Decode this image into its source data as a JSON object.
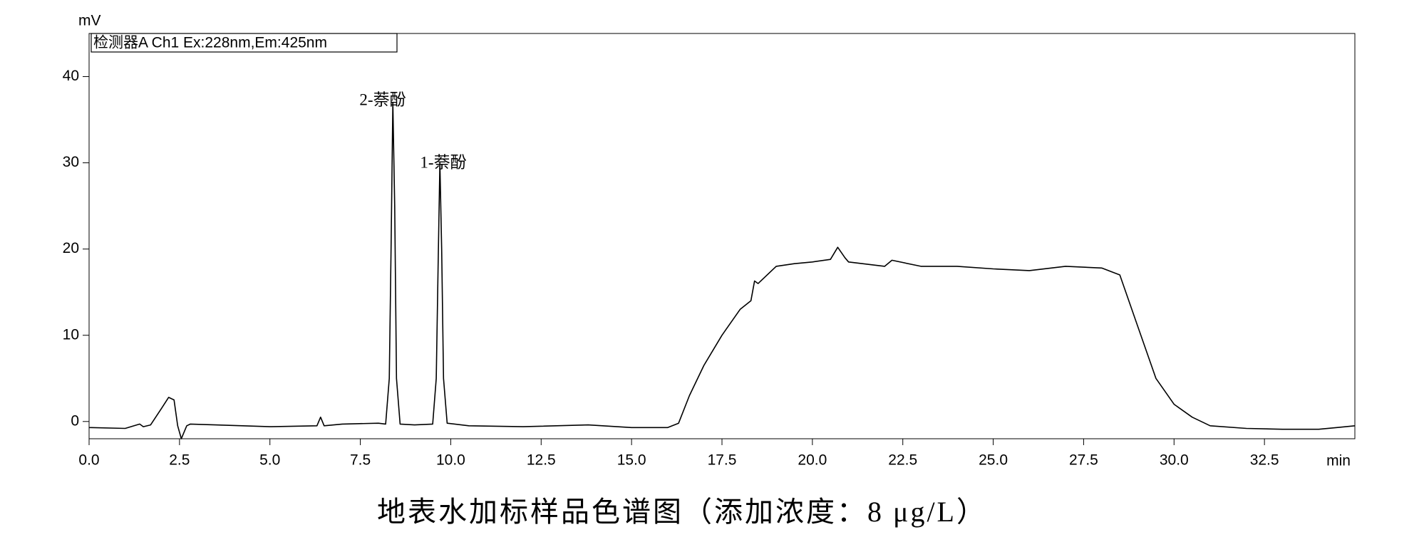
{
  "chart_data": {
    "type": "line",
    "y_label": "mV",
    "x_label": "min",
    "legend_text": "检测器A Ch1 Ex:228nm,Em:425nm",
    "annotations": [
      "2-萘酚",
      "1-萘酚"
    ],
    "caption": "地表水加标样品色谱图（添加浓度：8 μg/L）",
    "xlim": [
      0,
      35
    ],
    "ylim": [
      -2,
      45
    ],
    "xticks": [
      {
        "value": 0,
        "label": "0.0"
      },
      2.5,
      {
        "value": 5,
        "label": "5.0"
      },
      7.5,
      {
        "value": 10,
        "label": "10.0"
      },
      12.5,
      {
        "value": 15,
        "label": "15.0"
      },
      17.5,
      {
        "value": 20,
        "label": "20.0"
      },
      22.5,
      {
        "value": 25,
        "label": "25.0"
      },
      27.5,
      {
        "value": 30,
        "label": "30.0"
      },
      32.5
    ],
    "yticks": [
      0,
      10,
      20,
      30,
      40
    ],
    "series": [
      {
        "color": "#000000",
        "x": [
          0,
          1,
          1.4,
          1.5,
          1.7,
          2.0,
          2.2,
          2.35,
          2.45,
          2.55,
          2.7,
          2.8,
          3.5,
          5,
          6.3,
          6.4,
          6.5,
          7,
          8,
          8.2,
          8.3,
          8.35,
          8.4,
          8.45,
          8.5,
          8.6,
          9.0,
          9.5,
          9.6,
          9.65,
          9.7,
          9.75,
          9.8,
          9.9,
          10.5,
          12,
          13.8,
          15,
          16.0,
          16.3,
          16.6,
          17,
          17.5,
          18,
          18.3,
          18.4,
          18.5,
          19,
          19.5,
          20,
          20.5,
          20.7,
          20.9,
          21,
          22,
          22.2,
          23,
          24,
          25,
          26,
          27,
          28,
          28.5,
          29,
          29.5,
          30,
          30.5,
          31,
          32,
          33,
          34,
          34.5,
          35
        ],
        "values": [
          -0.7,
          -0.8,
          -0.3,
          -0.6,
          -0.4,
          1.5,
          2.8,
          2.5,
          -0.5,
          -2,
          -0.5,
          -0.3,
          -0.4,
          -0.6,
          -0.5,
          0.5,
          -0.5,
          -0.3,
          -0.2,
          -0.3,
          5,
          20,
          37,
          25,
          5,
          -0.3,
          -0.4,
          -0.3,
          5,
          18,
          30,
          20,
          5,
          -0.2,
          -0.5,
          -0.6,
          -0.4,
          -0.7,
          -0.7,
          -0.2,
          3,
          6.5,
          10,
          13,
          14,
          16.3,
          16,
          18,
          18.3,
          18.5,
          18.8,
          20.2,
          19,
          18.5,
          18,
          18.7,
          18,
          18,
          17.7,
          17.5,
          18,
          17.8,
          17,
          11,
          5,
          2,
          0.5,
          -0.5,
          -0.8,
          -0.9,
          -0.9,
          -0.7,
          -0.5
        ]
      }
    ]
  }
}
